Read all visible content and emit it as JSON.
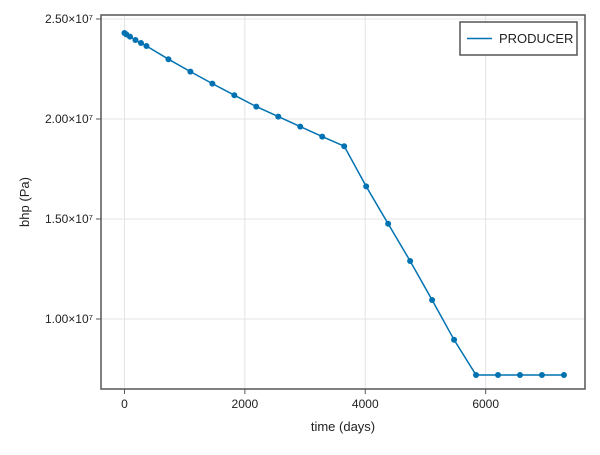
{
  "chart_data": {
    "type": "line",
    "xlabel": "time (days)",
    "ylabel": "bhp (Pa)",
    "xlim": [
      -390,
      7650
    ],
    "ylim": [
      6500000,
      25200000
    ],
    "xticks": [
      0,
      2000,
      4000,
      6000
    ],
    "xtick_labels": [
      "0",
      "2000",
      "4000",
      "6000"
    ],
    "yticks": [
      10000000,
      15000000,
      20000000,
      25000000
    ],
    "ytick_labels": [
      "1.00×10⁷",
      "1.50×10⁷",
      "2.00×10⁷",
      "2.50×10⁷"
    ],
    "grid": true,
    "legend_position": "top-right",
    "series": [
      {
        "name": "PRODUCER",
        "color": "#0072b2",
        "markers": true,
        "x": [
          0,
          30,
          91,
          182,
          274,
          365,
          730,
          1095,
          1460,
          1825,
          2190,
          2555,
          2920,
          3285,
          3650,
          4015,
          4380,
          4745,
          5110,
          5475,
          5840,
          6205,
          6570,
          6935,
          7300
        ],
        "y": [
          24300000,
          24230000,
          24120000,
          23950000,
          23800000,
          23650000,
          22990000,
          22370000,
          21770000,
          21190000,
          20620000,
          20120000,
          19620000,
          19120000,
          18640000,
          16630000,
          14760000,
          12900000,
          10950000,
          8960000,
          7200000,
          7200000,
          7200000,
          7200000,
          7200000
        ]
      }
    ]
  }
}
